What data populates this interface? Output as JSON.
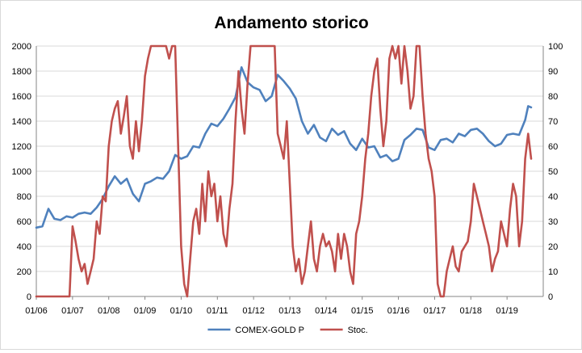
{
  "chart_data": {
    "type": "line",
    "title": "Andamento storico",
    "x_tick_labels": [
      "01/06",
      "01/07",
      "01/08",
      "01/09",
      "01/10",
      "01/11",
      "01/12",
      "01/13",
      "01/14",
      "01/15",
      "01/16",
      "01/17",
      "01/18",
      "01/19"
    ],
    "y_left": {
      "min": 0,
      "max": 2000,
      "step": 200,
      "tick_labels": [
        "0",
        "200",
        "400",
        "600",
        "800",
        "1000",
        "1200",
        "1400",
        "1600",
        "1800",
        "2000"
      ]
    },
    "y_right": {
      "min": 0,
      "max": 100,
      "step": 10,
      "tick_labels": [
        "0",
        "10",
        "20",
        "30",
        "40",
        "50",
        "60",
        "70",
        "80",
        "90",
        "100"
      ]
    },
    "grid": "horizontal",
    "legend_position": "bottom",
    "series": [
      {
        "name": "COMEX-GOLD P",
        "axis": "left",
        "color": "#4f81bd",
        "points": [
          [
            "01/06",
            550
          ],
          [
            "03/06",
            560
          ],
          [
            "05/06",
            700
          ],
          [
            "07/06",
            620
          ],
          [
            "09/06",
            610
          ],
          [
            "11/06",
            640
          ],
          [
            "01/07",
            630
          ],
          [
            "03/07",
            660
          ],
          [
            "05/07",
            670
          ],
          [
            "07/07",
            660
          ],
          [
            "09/07",
            710
          ],
          [
            "11/07",
            780
          ],
          [
            "01/08",
            880
          ],
          [
            "03/08",
            960
          ],
          [
            "05/08",
            900
          ],
          [
            "07/08",
            940
          ],
          [
            "09/08",
            820
          ],
          [
            "11/08",
            760
          ],
          [
            "01/09",
            900
          ],
          [
            "03/09",
            920
          ],
          [
            "05/09",
            950
          ],
          [
            "07/09",
            940
          ],
          [
            "09/09",
            1000
          ],
          [
            "11/09",
            1130
          ],
          [
            "01/10",
            1100
          ],
          [
            "03/10",
            1120
          ],
          [
            "05/10",
            1200
          ],
          [
            "07/10",
            1190
          ],
          [
            "09/10",
            1300
          ],
          [
            "11/10",
            1380
          ],
          [
            "01/11",
            1360
          ],
          [
            "03/11",
            1420
          ],
          [
            "05/11",
            1500
          ],
          [
            "07/11",
            1590
          ],
          [
            "09/11",
            1830
          ],
          [
            "11/11",
            1710
          ],
          [
            "01/12",
            1670
          ],
          [
            "03/12",
            1650
          ],
          [
            "05/12",
            1560
          ],
          [
            "07/12",
            1600
          ],
          [
            "09/12",
            1770
          ],
          [
            "11/12",
            1720
          ],
          [
            "01/13",
            1660
          ],
          [
            "03/13",
            1580
          ],
          [
            "05/13",
            1400
          ],
          [
            "07/13",
            1300
          ],
          [
            "09/13",
            1370
          ],
          [
            "11/13",
            1270
          ],
          [
            "01/14",
            1240
          ],
          [
            "03/14",
            1340
          ],
          [
            "05/14",
            1290
          ],
          [
            "07/14",
            1320
          ],
          [
            "09/14",
            1220
          ],
          [
            "11/14",
            1170
          ],
          [
            "01/15",
            1260
          ],
          [
            "03/15",
            1190
          ],
          [
            "05/15",
            1200
          ],
          [
            "07/15",
            1110
          ],
          [
            "09/15",
            1130
          ],
          [
            "11/15",
            1080
          ],
          [
            "01/16",
            1100
          ],
          [
            "03/16",
            1250
          ],
          [
            "05/16",
            1290
          ],
          [
            "07/16",
            1340
          ],
          [
            "09/16",
            1330
          ],
          [
            "11/16",
            1190
          ],
          [
            "01/17",
            1170
          ],
          [
            "03/17",
            1250
          ],
          [
            "05/17",
            1260
          ],
          [
            "07/17",
            1230
          ],
          [
            "09/17",
            1300
          ],
          [
            "11/17",
            1280
          ],
          [
            "01/18",
            1330
          ],
          [
            "03/18",
            1340
          ],
          [
            "05/18",
            1300
          ],
          [
            "07/18",
            1240
          ],
          [
            "09/18",
            1200
          ],
          [
            "11/18",
            1220
          ],
          [
            "01/19",
            1290
          ],
          [
            "03/19",
            1300
          ],
          [
            "05/19",
            1290
          ],
          [
            "07/19",
            1410
          ],
          [
            "08/19",
            1520
          ],
          [
            "09/19",
            1510
          ]
        ]
      },
      {
        "name": "Stoc.",
        "axis": "right",
        "color": "#c0504d",
        "points": [
          [
            "01/06",
            0
          ],
          [
            "04/06",
            0
          ],
          [
            "07/06",
            0
          ],
          [
            "10/06",
            0
          ],
          [
            "12/06",
            0
          ],
          [
            "01/07",
            28
          ],
          [
            "02/07",
            22
          ],
          [
            "03/07",
            15
          ],
          [
            "04/07",
            10
          ],
          [
            "05/07",
            13
          ],
          [
            "06/07",
            5
          ],
          [
            "07/07",
            10
          ],
          [
            "08/07",
            15
          ],
          [
            "09/07",
            30
          ],
          [
            "10/07",
            25
          ],
          [
            "11/07",
            40
          ],
          [
            "12/07",
            38
          ],
          [
            "01/08",
            60
          ],
          [
            "02/08",
            70
          ],
          [
            "03/08",
            75
          ],
          [
            "04/08",
            78
          ],
          [
            "05/08",
            65
          ],
          [
            "06/08",
            72
          ],
          [
            "07/08",
            80
          ],
          [
            "08/08",
            60
          ],
          [
            "09/08",
            55
          ],
          [
            "10/08",
            70
          ],
          [
            "11/08",
            58
          ],
          [
            "12/08",
            70
          ],
          [
            "01/09",
            88
          ],
          [
            "02/09",
            95
          ],
          [
            "03/09",
            100
          ],
          [
            "04/09",
            100
          ],
          [
            "05/09",
            100
          ],
          [
            "06/09",
            100
          ],
          [
            "07/09",
            100
          ],
          [
            "08/09",
            100
          ],
          [
            "09/09",
            95
          ],
          [
            "10/09",
            100
          ],
          [
            "11/09",
            100
          ],
          [
            "12/09",
            60
          ],
          [
            "01/10",
            20
          ],
          [
            "02/10",
            5
          ],
          [
            "03/10",
            0
          ],
          [
            "04/10",
            15
          ],
          [
            "05/10",
            30
          ],
          [
            "06/10",
            35
          ],
          [
            "07/10",
            25
          ],
          [
            "08/10",
            45
          ],
          [
            "09/10",
            30
          ],
          [
            "10/10",
            50
          ],
          [
            "11/10",
            40
          ],
          [
            "12/10",
            45
          ],
          [
            "01/11",
            30
          ],
          [
            "02/11",
            40
          ],
          [
            "03/11",
            25
          ],
          [
            "04/11",
            20
          ],
          [
            "05/11",
            35
          ],
          [
            "06/11",
            45
          ],
          [
            "07/11",
            70
          ],
          [
            "08/11",
            90
          ],
          [
            "09/11",
            75
          ],
          [
            "10/11",
            65
          ],
          [
            "11/11",
            85
          ],
          [
            "12/11",
            100
          ],
          [
            "01/12",
            100
          ],
          [
            "02/12",
            100
          ],
          [
            "03/12",
            100
          ],
          [
            "04/12",
            100
          ],
          [
            "05/12",
            100
          ],
          [
            "06/12",
            100
          ],
          [
            "07/12",
            100
          ],
          [
            "08/12",
            100
          ],
          [
            "09/12",
            65
          ],
          [
            "10/12",
            60
          ],
          [
            "11/12",
            55
          ],
          [
            "12/12",
            70
          ],
          [
            "01/13",
            45
          ],
          [
            "02/13",
            20
          ],
          [
            "03/13",
            10
          ],
          [
            "04/13",
            15
          ],
          [
            "05/13",
            5
          ],
          [
            "06/13",
            10
          ],
          [
            "07/13",
            20
          ],
          [
            "08/13",
            30
          ],
          [
            "09/13",
            15
          ],
          [
            "10/13",
            10
          ],
          [
            "11/13",
            20
          ],
          [
            "12/13",
            25
          ],
          [
            "01/14",
            20
          ],
          [
            "02/14",
            22
          ],
          [
            "03/14",
            18
          ],
          [
            "04/14",
            10
          ],
          [
            "05/14",
            25
          ],
          [
            "06/14",
            15
          ],
          [
            "07/14",
            25
          ],
          [
            "08/14",
            20
          ],
          [
            "09/14",
            10
          ],
          [
            "10/14",
            5
          ],
          [
            "11/14",
            25
          ],
          [
            "12/14",
            30
          ],
          [
            "01/15",
            40
          ],
          [
            "02/15",
            55
          ],
          [
            "03/15",
            65
          ],
          [
            "04/15",
            80
          ],
          [
            "05/15",
            90
          ],
          [
            "06/15",
            95
          ],
          [
            "07/15",
            75
          ],
          [
            "08/15",
            60
          ],
          [
            "09/15",
            70
          ],
          [
            "10/15",
            95
          ],
          [
            "11/15",
            100
          ],
          [
            "12/15",
            95
          ],
          [
            "01/16",
            100
          ],
          [
            "02/16",
            85
          ],
          [
            "03/16",
            100
          ],
          [
            "04/16",
            90
          ],
          [
            "05/16",
            75
          ],
          [
            "06/16",
            80
          ],
          [
            "07/16",
            100
          ],
          [
            "08/16",
            100
          ],
          [
            "09/16",
            80
          ],
          [
            "10/16",
            65
          ],
          [
            "11/16",
            55
          ],
          [
            "12/16",
            50
          ],
          [
            "01/17",
            40
          ],
          [
            "02/17",
            5
          ],
          [
            "03/17",
            0
          ],
          [
            "04/17",
            0
          ],
          [
            "05/17",
            10
          ],
          [
            "06/17",
            15
          ],
          [
            "07/17",
            20
          ],
          [
            "08/17",
            12
          ],
          [
            "09/17",
            10
          ],
          [
            "10/17",
            18
          ],
          [
            "11/17",
            20
          ],
          [
            "12/17",
            22
          ],
          [
            "01/18",
            30
          ],
          [
            "02/18",
            45
          ],
          [
            "03/18",
            40
          ],
          [
            "04/18",
            35
          ],
          [
            "05/18",
            30
          ],
          [
            "06/18",
            25
          ],
          [
            "07/18",
            20
          ],
          [
            "08/18",
            10
          ],
          [
            "09/18",
            15
          ],
          [
            "10/18",
            18
          ],
          [
            "11/18",
            30
          ],
          [
            "12/18",
            25
          ],
          [
            "01/19",
            20
          ],
          [
            "02/19",
            35
          ],
          [
            "03/19",
            45
          ],
          [
            "04/19",
            40
          ],
          [
            "05/19",
            20
          ],
          [
            "06/19",
            30
          ],
          [
            "07/19",
            55
          ],
          [
            "08/19",
            65
          ],
          [
            "09/19",
            55
          ]
        ]
      }
    ]
  }
}
